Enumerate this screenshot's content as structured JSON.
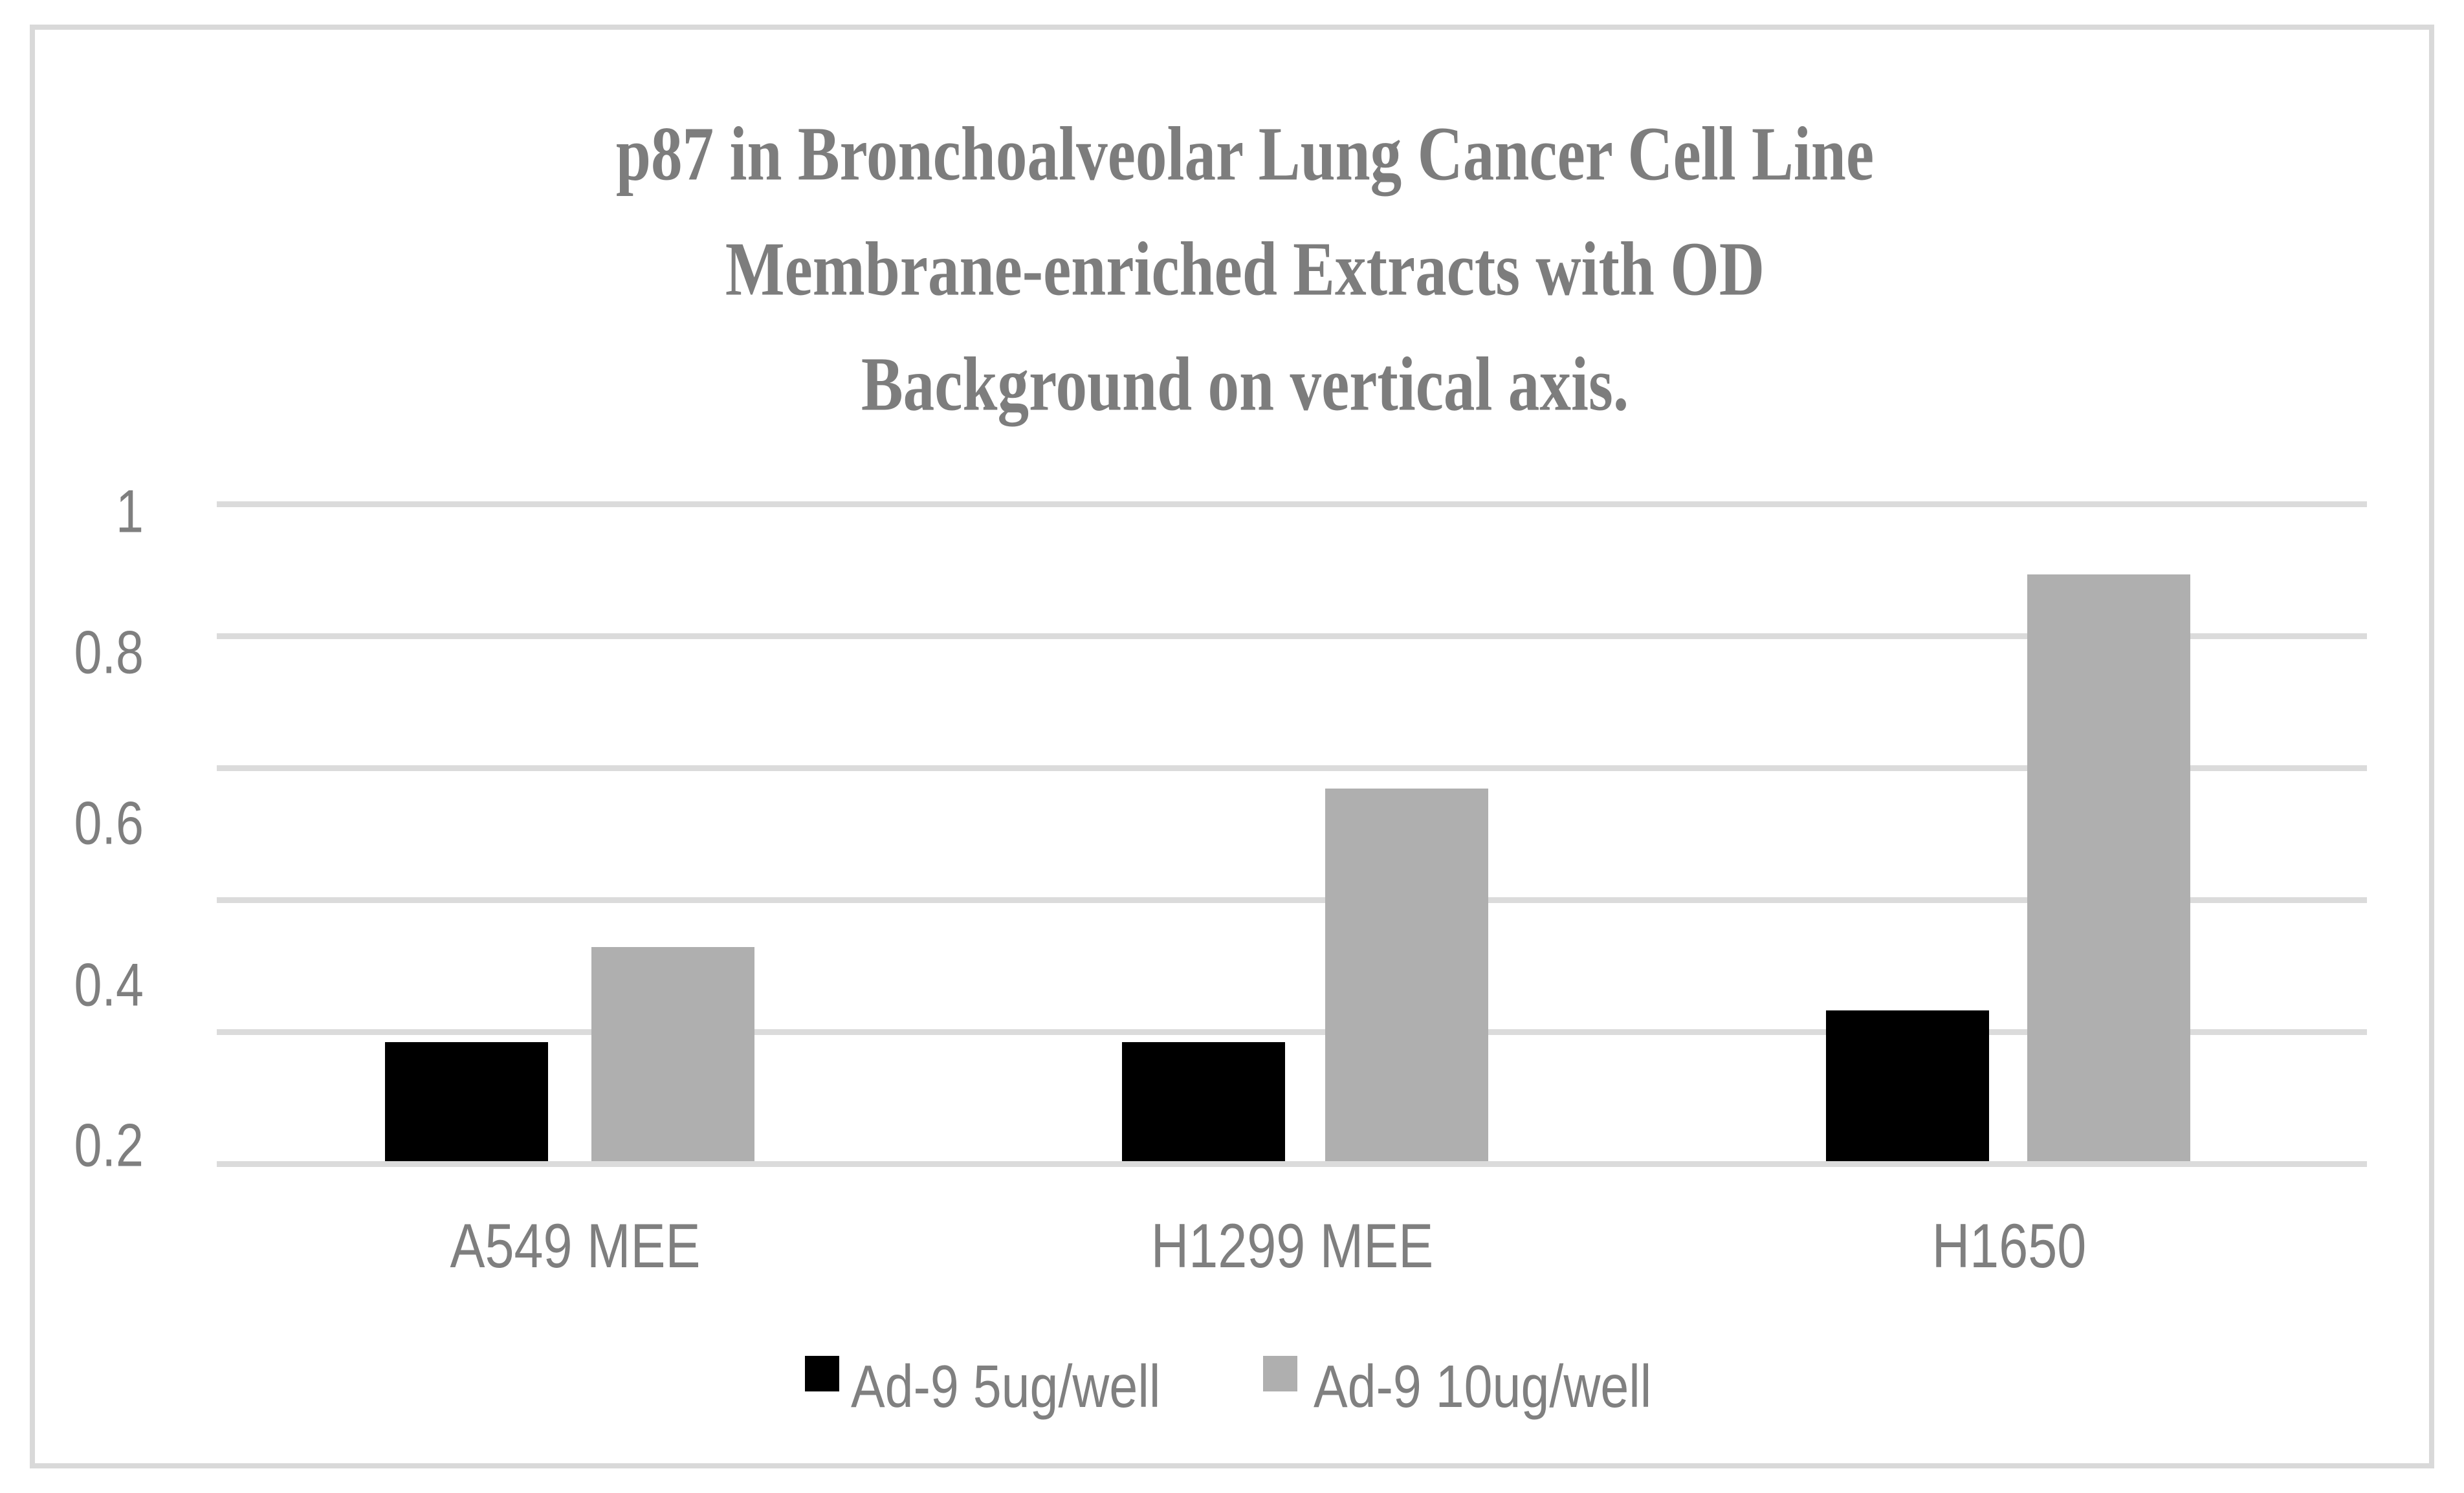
{
  "figure": {
    "title_lines": [
      "p87 in Bronchoalveolar Lung Cancer Cell Line",
      "Membrane-enriched Extracts with OD",
      "Background on vertical axis."
    ],
    "y_axis": {
      "tick_labels": [
        "1",
        "0.8",
        "0.6",
        "0.4",
        "0.2"
      ]
    },
    "x_axis": {
      "category_labels": [
        "A549 MEE",
        "H1299 MEE",
        "H1650"
      ]
    },
    "legend": {
      "items": [
        {
          "label": "Ad-9 5ug/well",
          "color": "#000000"
        },
        {
          "label": "Ad-9 10ug/well",
          "color": "#AFAFAF"
        }
      ]
    },
    "colors": {
      "background": "#FFFFFF",
      "frame_border": "#D9D9D9",
      "gridline": "#DBDBDB",
      "title_text": "#7D7D7D",
      "label_text": "#7F7F7F",
      "series_black": "#000000",
      "series_gray": "#AFAFAF"
    }
  },
  "chart_data": {
    "type": "bar",
    "title": "p87 in Bronchoalveolar Lung Cancer Cell Line Membrane-enriched Extracts with OD Background on vertical axis.",
    "categories": [
      "A549 MEE",
      "H1299 MEE",
      "H1650"
    ],
    "series": [
      {
        "name": "Ad-9 5ug/well",
        "color": "#000000",
        "values": [
          0.33,
          0.33,
          0.37
        ]
      },
      {
        "name": "Ad-9 10ug/well",
        "color": "#AFAFAF",
        "values": [
          0.45,
          0.65,
          0.92
        ]
      }
    ],
    "xlabel": "",
    "ylabel": "",
    "ylim": [
      0.2,
      1.02
    ],
    "yticks": [
      1,
      0.8,
      0.6,
      0.4,
      0.2
    ],
    "grid": "horizontal",
    "gridline_count": 6,
    "bars_baseline_value": 0.2,
    "legend_position": "bottom"
  }
}
